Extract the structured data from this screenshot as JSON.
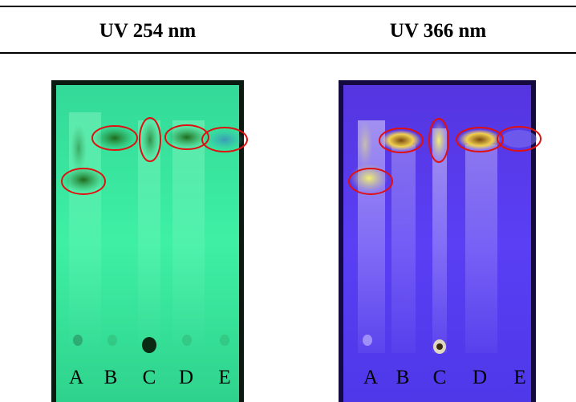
{
  "header": {
    "columns": [
      "UV 254 nm",
      "UV 366 nm"
    ]
  },
  "plates": [
    {
      "lanes": [
        "A",
        "B",
        "C",
        "D",
        "E"
      ]
    },
    {
      "lanes": [
        "A",
        "B",
        "C",
        "D",
        "E"
      ]
    }
  ]
}
